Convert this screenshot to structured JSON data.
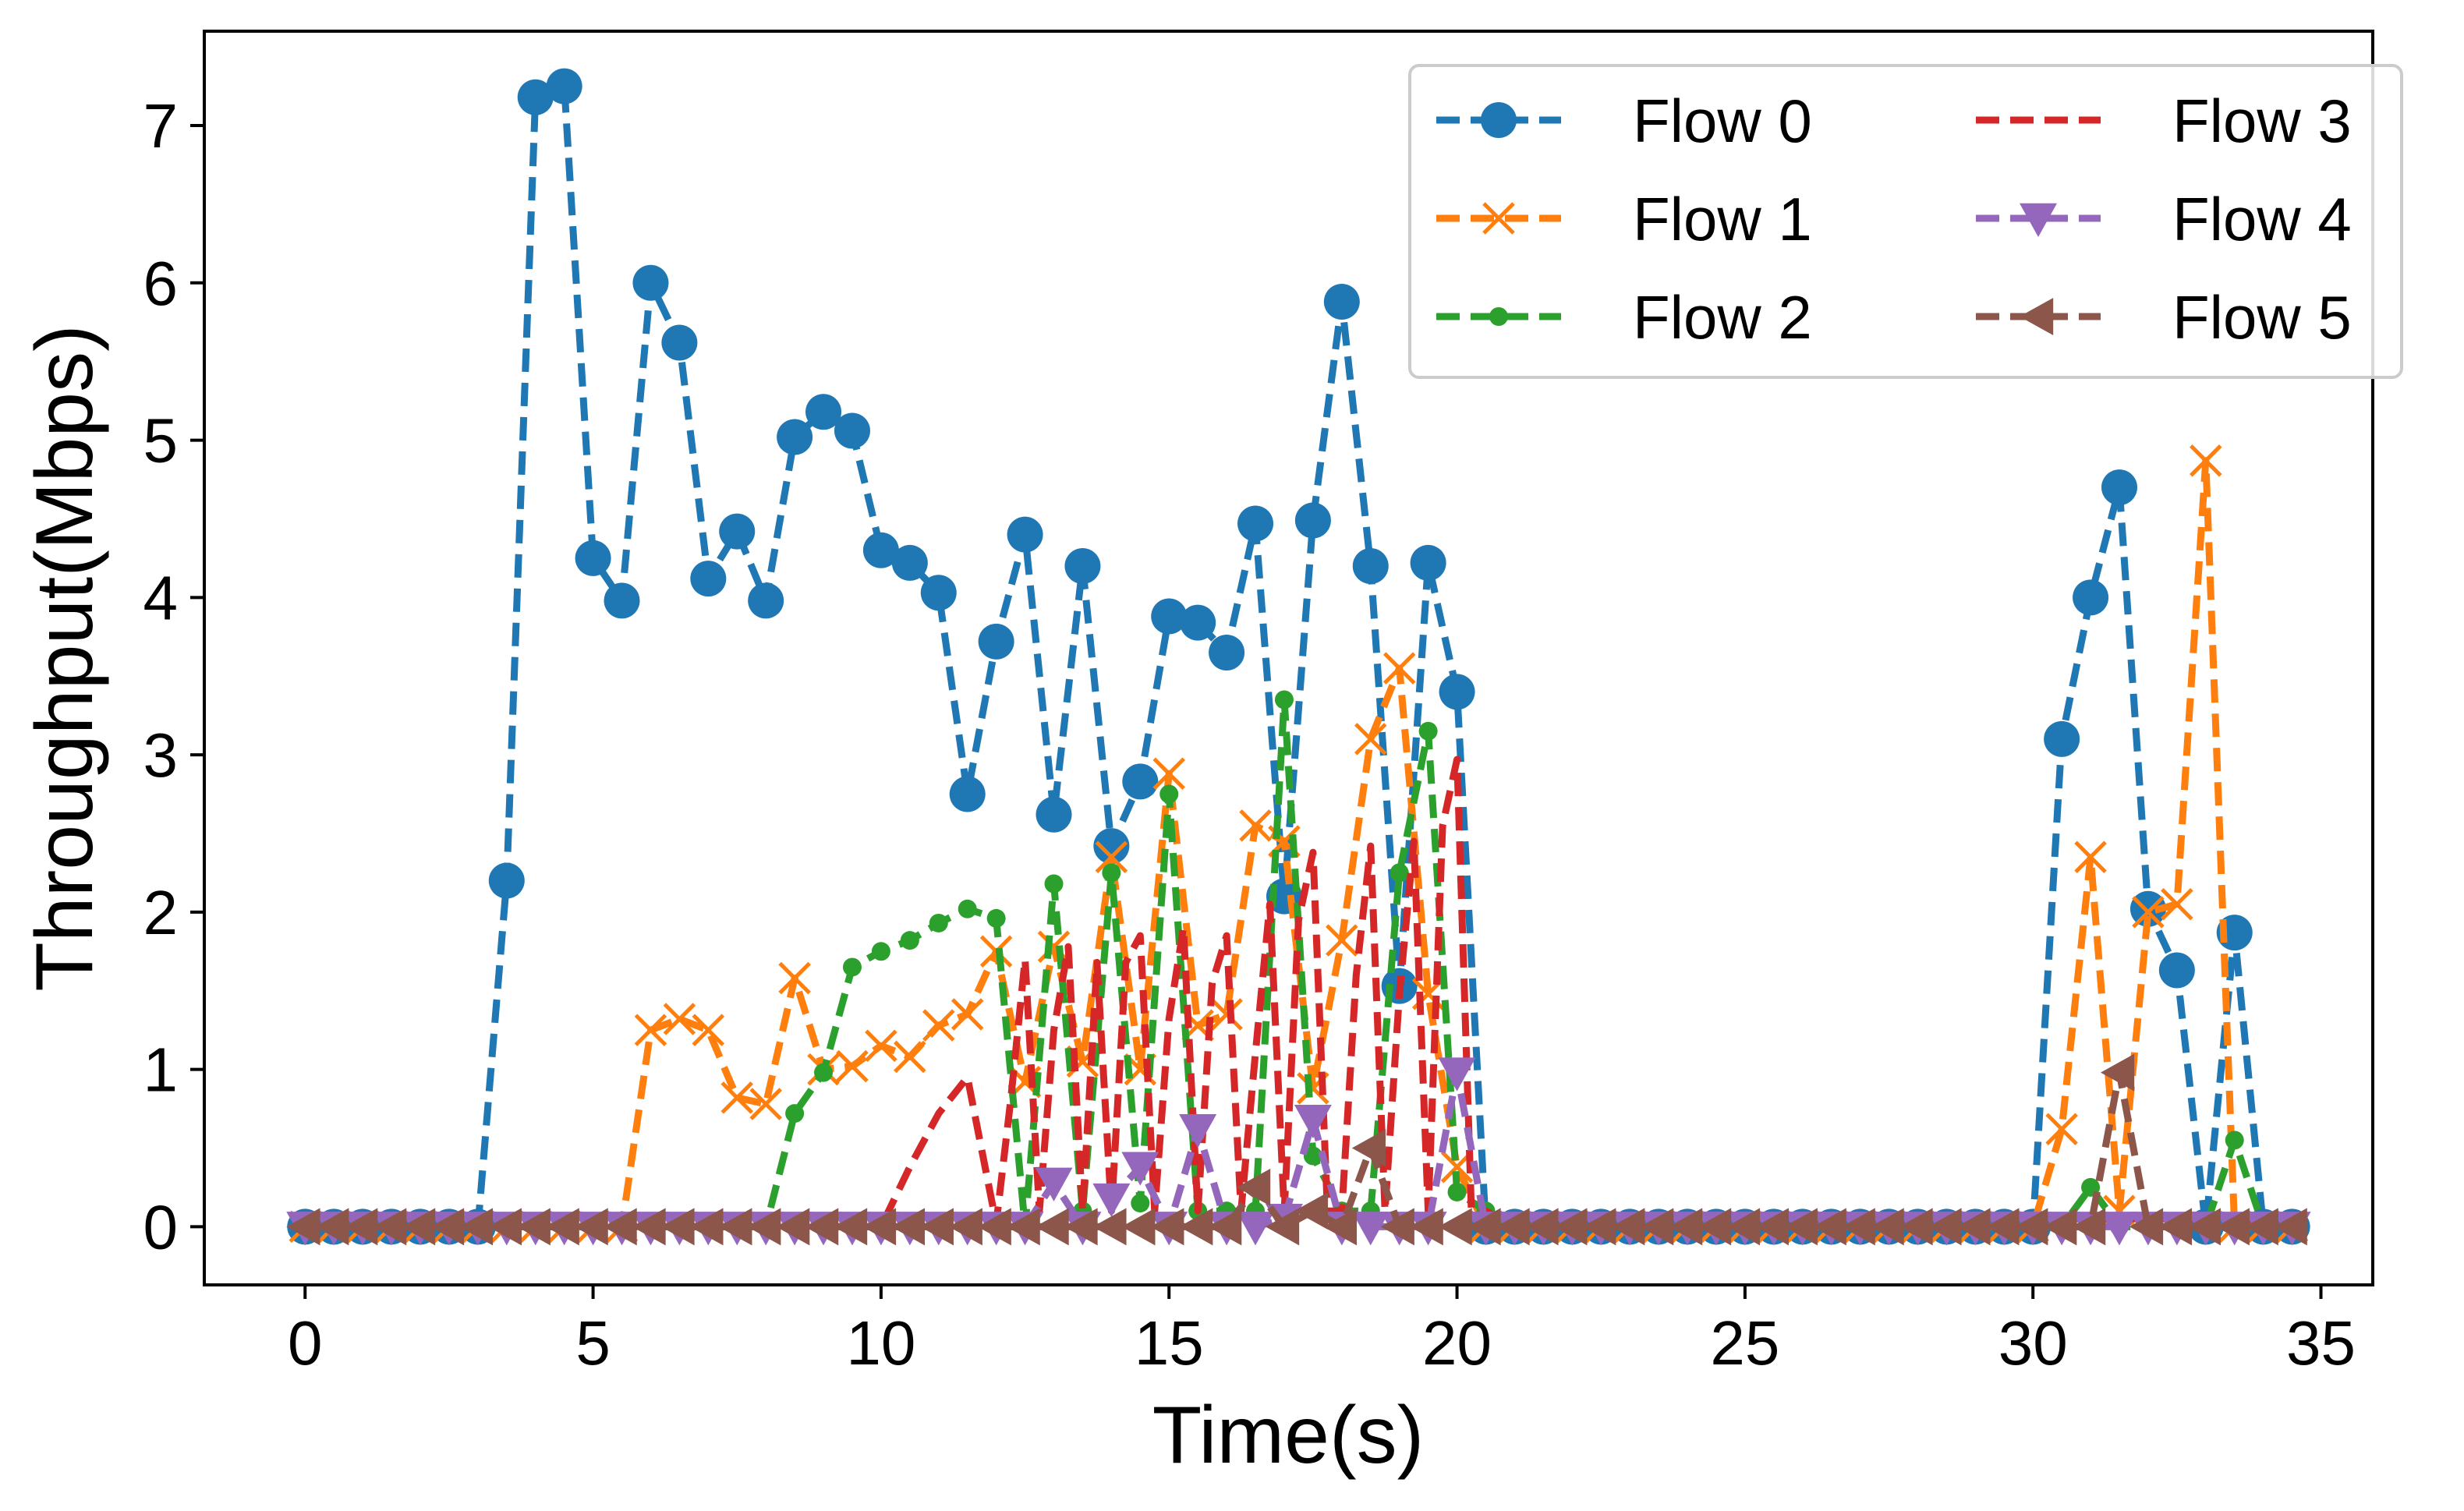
{
  "chart_data": {
    "type": "line",
    "title": "",
    "xlabel": "Time(s)",
    "ylabel": "Throughput(Mbps)",
    "xlim": [
      -1.75,
      35.9
    ],
    "ylim": [
      -0.37,
      7.6
    ],
    "xticks": [
      0,
      5,
      10,
      15,
      20,
      25,
      30,
      35
    ],
    "yticks": [
      0,
      1,
      2,
      3,
      4,
      5,
      6,
      7
    ],
    "grid": false,
    "legend": {
      "placement": "top-right",
      "columns": 2
    },
    "series": [
      {
        "name": "Flow 0",
        "color": "#1f77b4",
        "marker": "circle",
        "x": [
          0,
          0.5,
          1,
          1.5,
          2,
          2.5,
          3,
          3.5,
          4,
          4.5,
          5,
          5.5,
          6,
          6.5,
          7,
          7.5,
          8,
          8.5,
          9,
          9.5,
          10,
          10.5,
          11,
          11.5,
          12,
          12.5,
          13,
          13.5,
          14,
          14.5,
          15,
          15.5,
          16,
          16.5,
          17,
          17.5,
          18,
          18.5,
          19,
          19.5,
          20,
          20.5,
          21,
          21.5,
          22,
          22.5,
          23,
          23.5,
          24,
          24.5,
          25,
          25.5,
          26,
          26.5,
          27,
          27.5,
          28,
          28.5,
          29,
          29.5,
          30,
          30.5,
          31,
          31.5,
          32,
          32.5,
          33,
          33.5,
          34,
          34.5
        ],
        "y": [
          0,
          0,
          0,
          0,
          0,
          0,
          0,
          2.2,
          7.18,
          7.25,
          4.25,
          3.98,
          6.0,
          5.62,
          4.12,
          4.42,
          3.98,
          5.02,
          5.18,
          5.06,
          4.3,
          4.22,
          4.03,
          2.75,
          3.72,
          4.4,
          2.62,
          4.2,
          2.42,
          2.83,
          3.88,
          3.84,
          3.65,
          4.47,
          2.1,
          4.49,
          5.88,
          4.2,
          1.53,
          4.22,
          3.4,
          0,
          0,
          0,
          0,
          0,
          0,
          0,
          0,
          0,
          0,
          0,
          0,
          0,
          0,
          0,
          0,
          0,
          0,
          0,
          0,
          3.1,
          4.0,
          4.7,
          2.02,
          1.63,
          0,
          1.87,
          0,
          0
        ]
      },
      {
        "name": "Flow 1",
        "color": "#ff7f0e",
        "marker": "x",
        "x": [
          0,
          0.5,
          1,
          1.5,
          2,
          2.5,
          3,
          3.5,
          4,
          4.5,
          5,
          5.5,
          6,
          6.5,
          7,
          7.5,
          8,
          8.5,
          9,
          9.5,
          10,
          10.5,
          11,
          11.5,
          12,
          12.5,
          13,
          13.5,
          14,
          14.5,
          15,
          15.5,
          16,
          16.5,
          17,
          17.5,
          18,
          18.5,
          19,
          19.5,
          20,
          20.5,
          21,
          21.5,
          22,
          22.5,
          23,
          23.5,
          24,
          24.5,
          25,
          25.5,
          26,
          26.5,
          27,
          27.5,
          28,
          28.5,
          29,
          29.5,
          30,
          30.5,
          31,
          31.5,
          32,
          32.5,
          33,
          33.5,
          34,
          34.5
        ],
        "y": [
          0,
          0,
          0,
          0,
          0,
          0,
          0,
          0,
          0,
          0,
          0,
          0,
          1.25,
          1.32,
          1.25,
          0.82,
          0.78,
          1.58,
          1.0,
          1.02,
          1.15,
          1.08,
          1.28,
          1.35,
          1.75,
          0.92,
          1.78,
          1.05,
          2.35,
          1.0,
          2.88,
          1.28,
          1.35,
          2.55,
          2.45,
          0.88,
          1.82,
          3.1,
          3.55,
          1.48,
          0.38,
          0,
          0,
          0,
          0,
          0,
          0,
          0,
          0,
          0,
          0,
          0,
          0,
          0,
          0,
          0,
          0,
          0,
          0,
          0,
          0,
          0.62,
          2.35,
          0.1,
          2.0,
          2.05,
          4.87,
          0,
          0,
          0
        ]
      },
      {
        "name": "Flow 2",
        "color": "#2ca02c",
        "marker": "point",
        "x": [
          0,
          0.5,
          1,
          1.5,
          2,
          2.5,
          3,
          3.5,
          4,
          4.5,
          5,
          5.5,
          6,
          6.5,
          7,
          7.5,
          8,
          8.5,
          9,
          9.5,
          10,
          10.5,
          11,
          11.5,
          12,
          12.5,
          13,
          13.5,
          14,
          14.5,
          15,
          15.5,
          16,
          16.5,
          17,
          17.5,
          18,
          18.5,
          19,
          19.5,
          20,
          20.5,
          21,
          21.5,
          22,
          22.5,
          23,
          23.5,
          24,
          24.5,
          25,
          25.5,
          26,
          26.5,
          27,
          27.5,
          28,
          28.5,
          29,
          29.5,
          30,
          30.5,
          31,
          31.5,
          32,
          32.5,
          33,
          33.5,
          34,
          34.5
        ],
        "y": [
          0,
          0,
          0,
          0,
          0,
          0,
          0,
          0,
          0,
          0,
          0,
          0,
          0,
          0,
          0,
          0,
          0,
          0.72,
          0.98,
          1.65,
          1.75,
          1.82,
          1.93,
          2.02,
          1.96,
          0,
          2.18,
          0.1,
          2.25,
          0.15,
          2.75,
          0.1,
          0.1,
          0.1,
          3.35,
          0.45,
          0.1,
          0.1,
          2.25,
          3.15,
          0.22,
          0.1,
          0,
          0,
          0,
          0,
          0,
          0,
          0,
          0,
          0,
          0,
          0,
          0,
          0,
          0,
          0,
          0,
          0,
          0,
          0,
          0,
          0.25,
          0,
          0,
          0,
          0,
          0.55,
          0,
          0
        ]
      },
      {
        "name": "Flow 3",
        "color": "#d62728",
        "marker": "none",
        "x": [
          0,
          0.5,
          1,
          1.5,
          2,
          2.5,
          3,
          3.5,
          4,
          4.5,
          5,
          5.5,
          6,
          6.5,
          7,
          7.5,
          8,
          8.5,
          9,
          9.5,
          10,
          10.5,
          11,
          11.5,
          12,
          12.25,
          12.5,
          12.75,
          13,
          13.25,
          13.5,
          13.75,
          14,
          14.25,
          14.5,
          14.75,
          15,
          15.25,
          15.5,
          15.75,
          16,
          16.25,
          16.5,
          16.75,
          17,
          17.25,
          17.5,
          17.75,
          18,
          18.25,
          18.5,
          18.75,
          19,
          19.25,
          19.5,
          19.75,
          20,
          20.25,
          20.5,
          21,
          22,
          23,
          24,
          25,
          26,
          27,
          28,
          29,
          30,
          30.5,
          31,
          31.5,
          32,
          32.5,
          33,
          33.5,
          34,
          34.5
        ],
        "y": [
          0,
          0,
          0,
          0,
          0,
          0,
          0,
          0,
          0,
          0,
          0,
          0,
          0,
          0,
          0,
          0,
          0,
          0,
          0,
          0,
          0,
          0.38,
          0.72,
          0.95,
          0.02,
          0.8,
          1.7,
          0.1,
          1.25,
          1.78,
          0.1,
          1.68,
          0.1,
          1.68,
          1.85,
          0.1,
          1.32,
          1.9,
          0.1,
          1.55,
          1.85,
          0.1,
          1.1,
          2.05,
          0.1,
          1.95,
          2.38,
          0.1,
          0.1,
          1.6,
          2.42,
          0.1,
          1.48,
          2.45,
          0.1,
          2.55,
          2.97,
          0.1,
          0.1,
          0,
          0,
          0,
          0,
          0,
          0,
          0,
          0,
          0,
          0,
          0.05,
          0.05,
          0.05,
          0.05,
          0.05,
          0.05,
          0.05,
          0,
          0
        ]
      },
      {
        "name": "Flow 4",
        "color": "#9467bd",
        "marker": "triangle-down",
        "x": [
          0,
          0.5,
          1,
          1.5,
          2,
          2.5,
          3,
          3.5,
          4,
          4.5,
          5,
          5.5,
          6,
          6.5,
          7,
          7.5,
          8,
          8.5,
          9,
          9.5,
          10,
          10.5,
          11,
          11.5,
          12,
          12.5,
          13,
          13.5,
          14,
          14.5,
          15,
          15.5,
          16,
          16.5,
          17,
          17.5,
          18,
          18.5,
          19,
          19.5,
          20,
          20.5,
          21,
          21.5,
          22,
          22.5,
          23,
          23.5,
          24,
          24.5,
          25,
          25.5,
          26,
          26.5,
          27,
          27.5,
          28,
          28.5,
          29,
          29.5,
          30,
          30.5,
          31,
          31.5,
          32,
          32.5,
          33,
          33.5,
          34,
          34.5
        ],
        "y": [
          0,
          0,
          0,
          0,
          0,
          0,
          0,
          0,
          0,
          0,
          0,
          0,
          0,
          0,
          0,
          0,
          0,
          0,
          0,
          0,
          0,
          0,
          0,
          0,
          0,
          0,
          0.28,
          0,
          0.18,
          0.38,
          0,
          0.62,
          0,
          0,
          0.05,
          0.68,
          0,
          0,
          0,
          0,
          0.98,
          0,
          0,
          0,
          0,
          0,
          0,
          0,
          0,
          0,
          0,
          0,
          0,
          0,
          0,
          0,
          0,
          0,
          0,
          0,
          0,
          0,
          0,
          0,
          0,
          0,
          0,
          0,
          0,
          0
        ]
      },
      {
        "name": "Flow 5",
        "color": "#8c564b",
        "marker": "triangle-left",
        "x": [
          0,
          0.5,
          1,
          1.5,
          2,
          2.5,
          3,
          3.5,
          4,
          4.5,
          5,
          5.5,
          6,
          6.5,
          7,
          7.5,
          8,
          8.5,
          9,
          9.5,
          10,
          10.5,
          11,
          11.5,
          12,
          12.5,
          13,
          13.5,
          14,
          14.5,
          15,
          15.5,
          16,
          16.5,
          17,
          17.5,
          18,
          18.5,
          19,
          19.5,
          20,
          20.5,
          21,
          21.5,
          22,
          22.5,
          23,
          23.5,
          24,
          24.5,
          25,
          25.5,
          26,
          26.5,
          27,
          27.5,
          28,
          28.5,
          29,
          29.5,
          30,
          30.5,
          31,
          31.5,
          32,
          32.5,
          33,
          33.5,
          34,
          34.5
        ],
        "y": [
          0,
          0,
          0,
          0,
          0,
          0,
          0,
          0,
          0,
          0,
          0,
          0,
          0,
          0,
          0,
          0,
          0,
          0,
          0,
          0,
          0,
          0,
          0,
          0,
          0,
          0,
          0,
          0,
          0,
          0,
          0,
          0,
          0,
          0.25,
          0,
          0.1,
          0,
          0.5,
          0,
          0,
          0,
          0,
          0,
          0,
          0,
          0,
          0,
          0,
          0,
          0,
          0,
          0,
          0,
          0,
          0,
          0,
          0,
          0,
          0,
          0,
          0,
          0,
          0,
          0.98,
          0,
          0,
          0,
          0,
          0,
          0
        ]
      }
    ]
  }
}
